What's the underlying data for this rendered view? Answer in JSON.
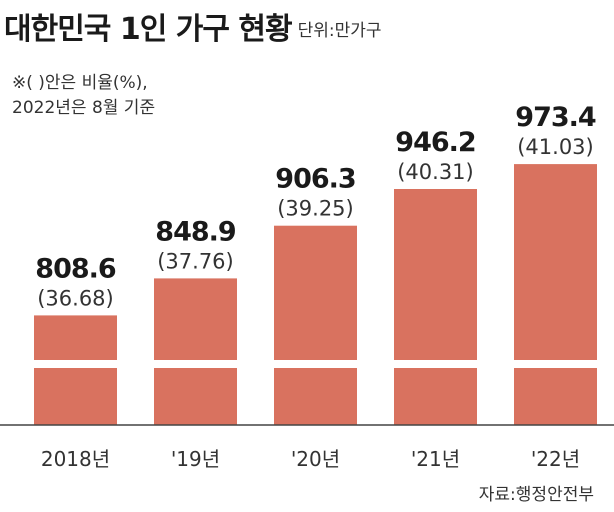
{
  "header": {
    "title": "대한민국 1인 가구 현황",
    "unit": "단위:만가구"
  },
  "notes": [
    "※(  )안은 비율(%),",
    "2022년은 8월 기준"
  ],
  "source": "자료:행정안전부",
  "colors": {
    "bar": "#d9725f",
    "background": "#ffffff",
    "baseline": "#444444",
    "text": "#222222"
  },
  "chart_data": {
    "type": "bar",
    "axis_break": true,
    "categories": [
      "2018년",
      "'19년",
      "'20년",
      "'21년",
      "'22년"
    ],
    "values": [
      808.6,
      848.9,
      906.3,
      946.2,
      973.4
    ],
    "value_labels": [
      "808.6",
      "848.9",
      "906.3",
      "946.2",
      "973.4"
    ],
    "ratio_labels": [
      "(36.68)",
      "(37.76)",
      "(39.25)",
      "(40.31)",
      "(41.03)"
    ],
    "title": "대한민국 1인 가구 현황",
    "unit": "단위:만가구",
    "grid": false,
    "legend": "none"
  }
}
